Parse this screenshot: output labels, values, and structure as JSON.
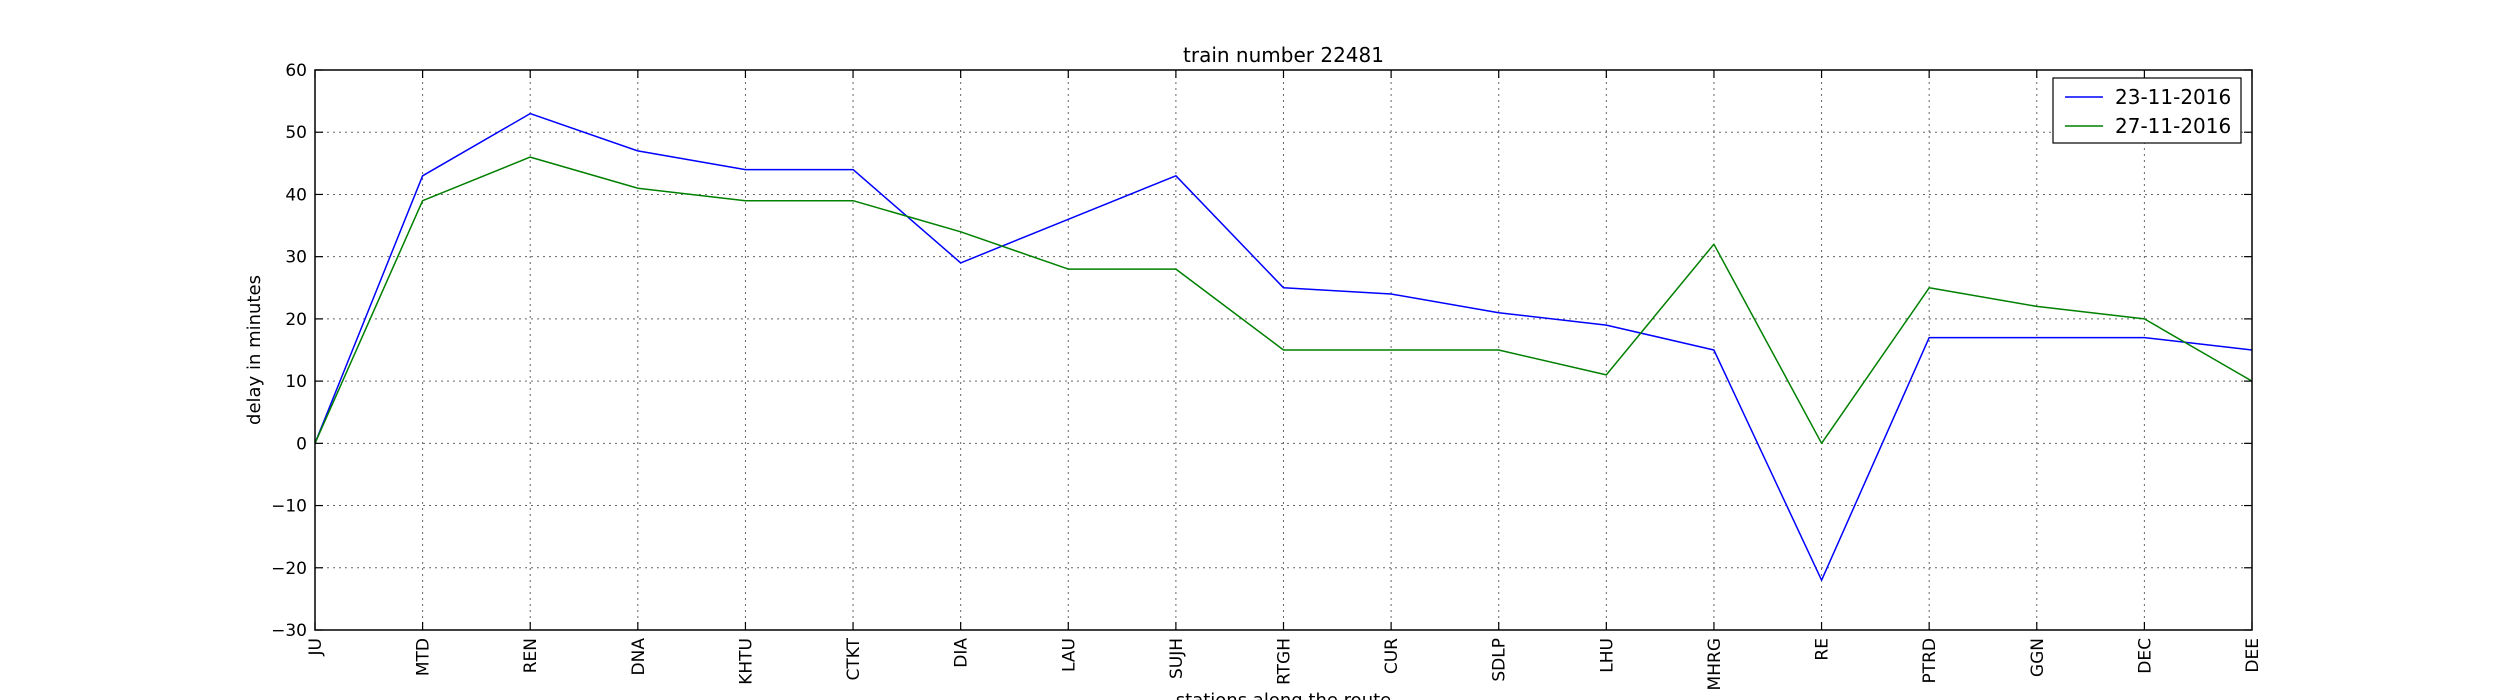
{
  "chart_data": {
    "type": "line",
    "title": "train number 22481",
    "xlabel": "stations along the route",
    "ylabel": "delay in minutes",
    "categories": [
      "JU",
      "MTD",
      "REN",
      "DNA",
      "KHTU",
      "CTKT",
      "DIA",
      "LAU",
      "SUJH",
      "RTGH",
      "CUR",
      "SDLP",
      "LHU",
      "MHRG",
      "RE",
      "PTRD",
      "GGN",
      "DEC",
      "DEE"
    ],
    "ylim": [
      -30,
      60
    ],
    "yticks": [
      -30,
      -20,
      -10,
      0,
      10,
      20,
      30,
      40,
      50,
      60
    ],
    "grid": true,
    "legend_position": "top-right",
    "series": [
      {
        "name": "23-11-2016",
        "color": "#0000ff",
        "values": [
          0,
          43,
          53,
          47,
          44,
          44,
          29,
          36,
          43,
          25,
          24,
          21,
          19,
          15,
          -22,
          17,
          17,
          17,
          15
        ]
      },
      {
        "name": "27-11-2016",
        "color": "#008000",
        "values": [
          0,
          39,
          46,
          41,
          39,
          39,
          34,
          28,
          28,
          15,
          15,
          15,
          11,
          32,
          0,
          25,
          22,
          20,
          10
        ]
      }
    ]
  }
}
